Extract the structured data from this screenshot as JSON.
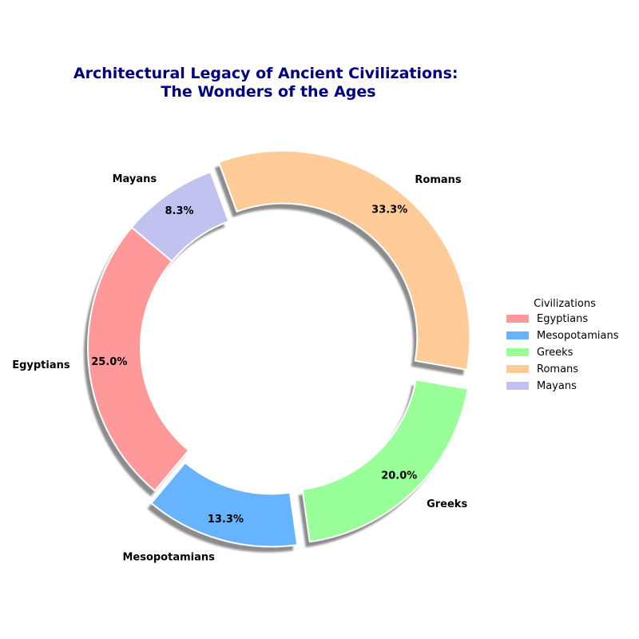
{
  "chart_data": {
    "type": "pie",
    "title": "Architectural Legacy of Ancient Civilizations:\nThe Wonders of the Ages",
    "title_color": "#000080",
    "donut": true,
    "start_angle_deg": 140,
    "direction": "counterclockwise",
    "legend_title": "Civilizations",
    "legend_position": "right",
    "slices": [
      {
        "label": "Egyptians",
        "value": 25.0,
        "pct_label": "25.0%",
        "color": "#FF9999",
        "exploded": false
      },
      {
        "label": "Mesopotamians",
        "value": 13.3,
        "pct_label": "13.3%",
        "color": "#66B3FF",
        "exploded": true
      },
      {
        "label": "Greeks",
        "value": 20.0,
        "pct_label": "20.0%",
        "color": "#99FF99",
        "exploded": true
      },
      {
        "label": "Romans",
        "value": 33.3,
        "pct_label": "33.3%",
        "color": "#FFCC99",
        "exploded": true
      },
      {
        "label": "Mayans",
        "value": 8.3,
        "pct_label": "8.3%",
        "color": "#C2C2F0",
        "exploded": false
      }
    ]
  }
}
